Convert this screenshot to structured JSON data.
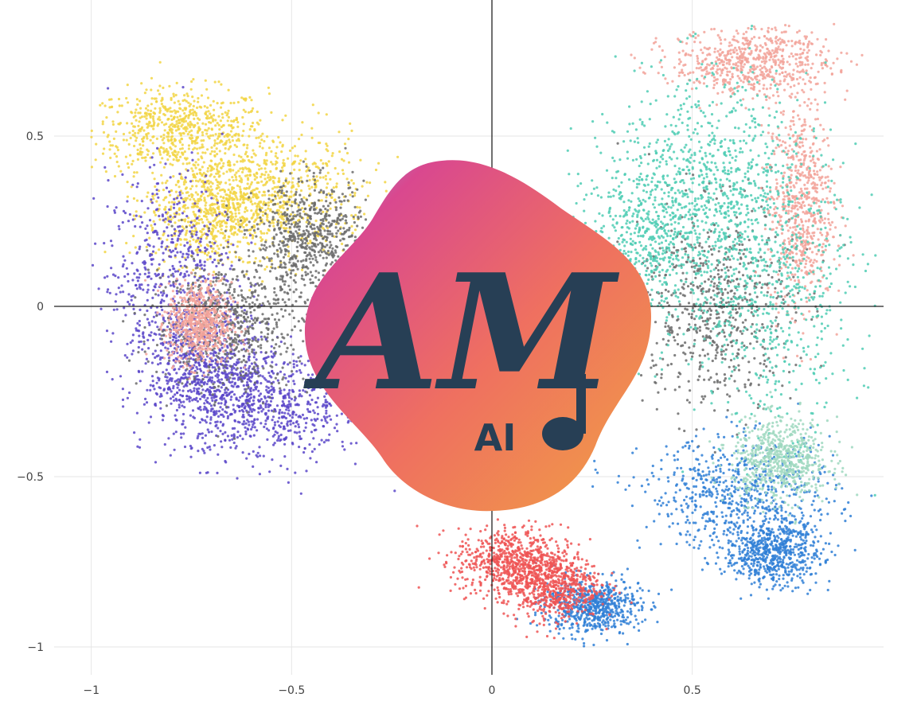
{
  "chart_data": {
    "type": "scatter",
    "title": "",
    "xlabel": "",
    "ylabel": "",
    "xlim": [
      -1.0,
      0.97
    ],
    "ylim": [
      -1.04,
      0.83
    ],
    "grid": true,
    "zero_lines": true,
    "x_ticks": [
      {
        "value": -1,
        "label": "−1"
      },
      {
        "value": -0.5,
        "label": "−0.5"
      },
      {
        "value": 0,
        "label": "0"
      },
      {
        "value": 0.5,
        "label": "0.5"
      }
    ],
    "y_ticks": [
      {
        "value": 0.5,
        "label": "0.5"
      },
      {
        "value": 0,
        "label": "0"
      },
      {
        "value": -0.5,
        "label": "−0.5"
      },
      {
        "value": -1,
        "label": "−1"
      }
    ],
    "series": [
      {
        "color": "#f2d544",
        "clusters": [
          {
            "x": -0.78,
            "y": 0.52,
            "sx": 0.11,
            "sy": 0.06
          },
          {
            "x": -0.55,
            "y": 0.33,
            "sx": 0.12,
            "sy": 0.09
          },
          {
            "x": -0.7,
            "y": 0.28,
            "sx": 0.08,
            "sy": 0.08
          }
        ]
      },
      {
        "color": "#5b47c9",
        "clusters": [
          {
            "x": -0.8,
            "y": 0.07,
            "sx": 0.08,
            "sy": 0.16
          },
          {
            "x": -0.55,
            "y": -0.3,
            "sx": 0.12,
            "sy": 0.08
          },
          {
            "x": -0.7,
            "y": -0.2,
            "sx": 0.08,
            "sy": 0.08
          }
        ]
      },
      {
        "color": "#6b6b6b",
        "clusters": [
          {
            "x": -0.65,
            "y": -0.05,
            "sx": 0.1,
            "sy": 0.1
          },
          {
            "x": -0.45,
            "y": 0.2,
            "sx": 0.07,
            "sy": 0.08
          },
          {
            "x": 0.55,
            "y": 0.0,
            "sx": 0.1,
            "sy": 0.15
          }
        ]
      },
      {
        "color": "#f2a39a",
        "clusters": [
          {
            "x": 0.65,
            "y": 0.72,
            "sx": 0.1,
            "sy": 0.05
          },
          {
            "x": -0.73,
            "y": -0.05,
            "sx": 0.04,
            "sy": 0.06
          },
          {
            "x": 0.77,
            "y": 0.3,
            "sx": 0.04,
            "sy": 0.15
          }
        ]
      },
      {
        "color": "#4fcdb4",
        "clusters": [
          {
            "x": 0.55,
            "y": 0.38,
            "sx": 0.12,
            "sy": 0.16
          },
          {
            "x": 0.7,
            "y": 0.05,
            "sx": 0.1,
            "sy": 0.2
          },
          {
            "x": 0.4,
            "y": 0.2,
            "sx": 0.1,
            "sy": 0.12
          }
        ]
      },
      {
        "color": "#2f7fd6",
        "clusters": [
          {
            "x": 0.62,
            "y": -0.55,
            "sx": 0.12,
            "sy": 0.08
          },
          {
            "x": 0.25,
            "y": -0.88,
            "sx": 0.06,
            "sy": 0.04
          },
          {
            "x": 0.7,
            "y": -0.72,
            "sx": 0.06,
            "sy": 0.05
          }
        ]
      },
      {
        "color": "#ef5454",
        "clusters": [
          {
            "x": 0.05,
            "y": -0.75,
            "sx": 0.07,
            "sy": 0.05
          },
          {
            "x": 0.15,
            "y": -0.82,
            "sx": 0.06,
            "sy": 0.05
          }
        ]
      },
      {
        "color": "#9fd8c0",
        "clusters": [
          {
            "x": 0.72,
            "y": -0.45,
            "sx": 0.06,
            "sy": 0.06
          }
        ]
      }
    ]
  },
  "logo": {
    "monogram": "AM",
    "subtitle": "AI",
    "gradient": [
      "#d9488f",
      "#ef7060",
      "#f0a044",
      "#7aa6e0"
    ]
  }
}
